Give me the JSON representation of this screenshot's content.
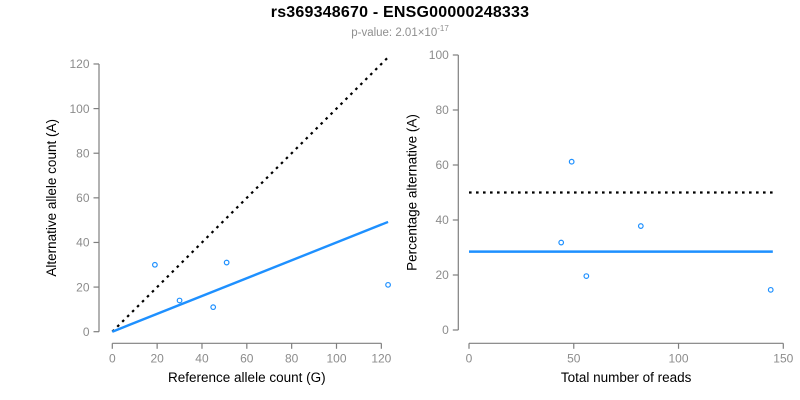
{
  "header": {
    "title": "rs369348670 - ENSG00000248333",
    "subtitle": {
      "base": "p-value: 2.01×10",
      "exponent": "-17"
    }
  },
  "colors": {
    "background": "#ffffff",
    "accent_blue": "#1E90FF",
    "reference_black": "#000000",
    "axis_line": "#7f7f7f",
    "tick_label": "#8c8c8c",
    "axis_title": "#000000",
    "title": "#000000",
    "subtitle": "#8f8f8f"
  },
  "chart_data": [
    {
      "type": "scatter",
      "panel": "left",
      "xlabel": "Reference allele count (G)",
      "ylabel": "Alternative allele count (A)",
      "xlim": [
        0,
        123
      ],
      "ylim": [
        0,
        123
      ],
      "xticks": [
        0,
        20,
        40,
        60,
        80,
        100,
        120
      ],
      "yticks": [
        0,
        20,
        40,
        60,
        80,
        100,
        120
      ],
      "grid": false,
      "marker": "open-circle",
      "points": [
        {
          "x": 19,
          "y": 30
        },
        {
          "x": 30,
          "y": 14
        },
        {
          "x": 45,
          "y": 11
        },
        {
          "x": 51,
          "y": 31
        },
        {
          "x": 123,
          "y": 21
        }
      ],
      "lines": [
        {
          "name": "identity-reference-line",
          "style": "dotted",
          "color": "#000000",
          "x1": 0,
          "y1": 0,
          "x2": 123,
          "y2": 123
        },
        {
          "name": "fitted-ratio-line",
          "style": "solid",
          "color": "#1E90FF",
          "x1": 0,
          "y1": 0,
          "x2": 123,
          "y2": 49.2
        }
      ]
    },
    {
      "type": "scatter",
      "panel": "right",
      "xlabel": "Total number of reads",
      "ylabel": "Percentage alternative (A)",
      "xlim": [
        0,
        150
      ],
      "ylim": [
        0,
        100
      ],
      "xticks": [
        0,
        50,
        100,
        150
      ],
      "yticks": [
        0,
        20,
        40,
        60,
        80,
        100
      ],
      "grid": false,
      "marker": "open-circle",
      "points": [
        {
          "x": 49,
          "y": 61.2
        },
        {
          "x": 44,
          "y": 31.8
        },
        {
          "x": 56,
          "y": 19.6
        },
        {
          "x": 82,
          "y": 37.8
        },
        {
          "x": 144,
          "y": 14.6
        }
      ],
      "lines": [
        {
          "name": "fifty-percent-reference-line",
          "style": "dotted",
          "color": "#000000",
          "x1": 0,
          "y1": 50,
          "x2": 145,
          "y2": 50
        },
        {
          "name": "mean-percentage-line",
          "style": "solid",
          "color": "#1E90FF",
          "x1": 0,
          "y1": 28.5,
          "x2": 145,
          "y2": 28.5
        }
      ]
    }
  ]
}
